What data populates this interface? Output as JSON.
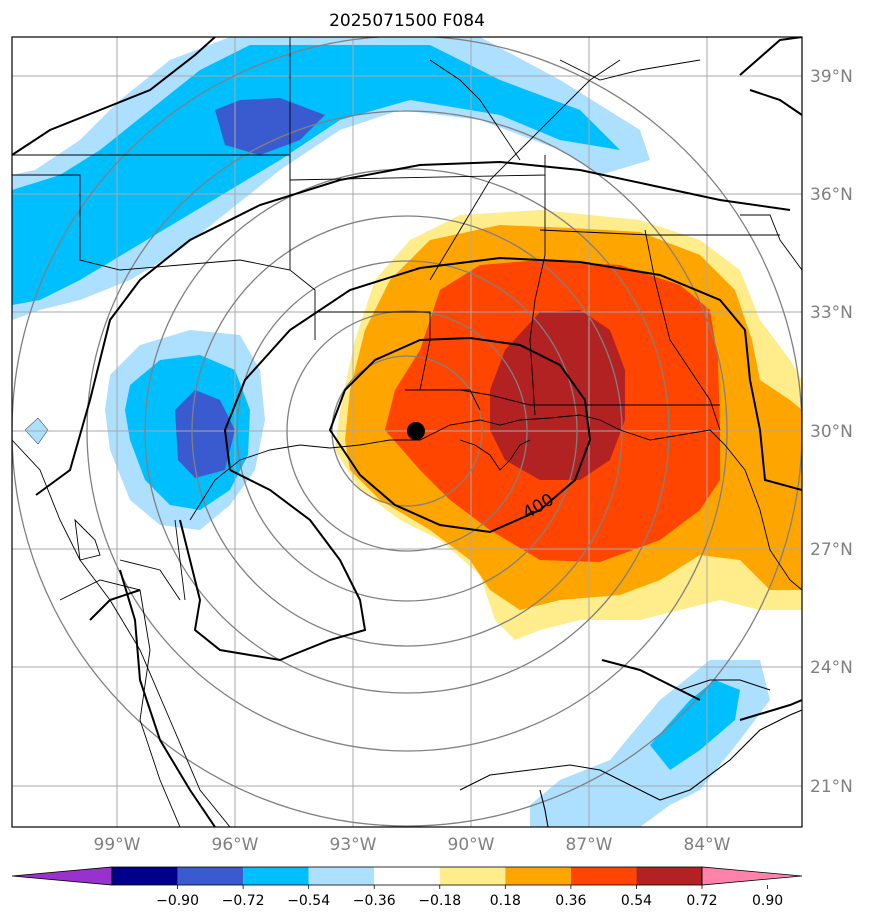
{
  "title": "2025071500 F084",
  "map": {
    "lat_labels": [
      "39°N",
      "36°N",
      "33°N",
      "30°N",
      "27°N",
      "24°N",
      "21°N"
    ],
    "lon_labels": [
      "99°W",
      "96°W",
      "93°W",
      "90°W",
      "87°W",
      "84°W"
    ],
    "contour_label": "400",
    "center_marker": {
      "lon": -91.4,
      "lat": 30.0
    }
  },
  "colorbar": {
    "ticks": [
      "−0.90",
      "−0.72",
      "−0.54",
      "−0.36",
      "−0.18",
      "0.18",
      "0.36",
      "0.54",
      "0.72",
      "0.90"
    ],
    "colors": [
      "#9932CC",
      "#00008B",
      "#3A5BD0",
      "#00BFFF",
      "#ADDFFF",
      "#FFFFFF",
      "#FFEC8B",
      "#FFA500",
      "#FF4500",
      "#B22222",
      "#FF82AB"
    ]
  },
  "colors": {
    "dark_blue": "#3A5BD0",
    "mid_blue": "#00BFFF",
    "light_blue": "#ADDFFF",
    "yellow": "#FFEC8B",
    "orange": "#FFA500",
    "red_orange": "#FF4500",
    "dark_red": "#B22222",
    "grid": "#A9A9A9",
    "gray_contour": "#808080"
  }
}
